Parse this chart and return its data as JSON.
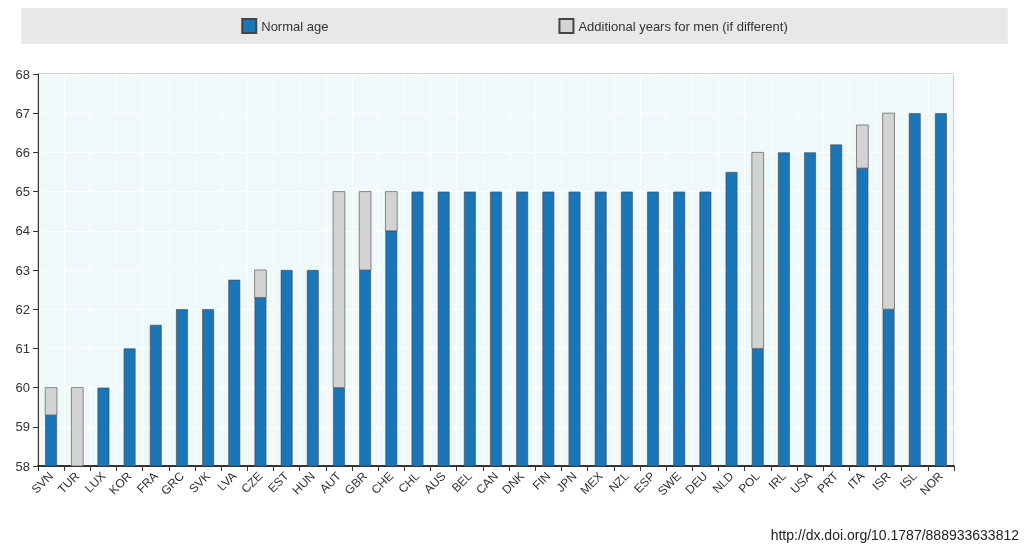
{
  "chart_data": {
    "type": "bar",
    "categories": [
      "SVN",
      "TUR",
      "LUX",
      "KOR",
      "FRA",
      "GRC",
      "SVK",
      "LVA",
      "CZE",
      "EST",
      "HUN",
      "AUT",
      "GBR",
      "CHE",
      "CHL",
      "AUS",
      "BEL",
      "CAN",
      "DNK",
      "FIN",
      "JPN",
      "MEX",
      "NZL",
      "ESP",
      "SWE",
      "DEU",
      "NLD",
      "POL",
      "IRL",
      "USA",
      "PRT",
      "ITA",
      "ISR",
      "ISL",
      "NOR"
    ],
    "series": [
      {
        "name": "Normal age",
        "color": "#1a76b8",
        "values": [
          59.3,
          58,
          60,
          61,
          61.6,
          62,
          62,
          62.75,
          62.3,
          63,
          63,
          60,
          63,
          64,
          65,
          65,
          65,
          65,
          65,
          65,
          65,
          65,
          65,
          65,
          65,
          65,
          65.5,
          61,
          66,
          66,
          66.2,
          65.6,
          62,
          67,
          67
        ]
      },
      {
        "name": "Additional years for men (if different)",
        "color": "#d3d3d3",
        "base": [
          59.3,
          58,
          null,
          null,
          null,
          null,
          null,
          null,
          62.3,
          null,
          null,
          60,
          63,
          64,
          null,
          null,
          null,
          null,
          null,
          null,
          null,
          null,
          null,
          null,
          null,
          null,
          null,
          61,
          null,
          null,
          null,
          65.6,
          62,
          null,
          null
        ],
        "values": [
          0.7,
          2,
          null,
          null,
          null,
          null,
          null,
          null,
          0.7,
          null,
          null,
          5,
          2,
          1,
          null,
          null,
          null,
          null,
          null,
          null,
          null,
          null,
          null,
          null,
          null,
          null,
          null,
          5,
          null,
          null,
          null,
          1.1,
          5,
          null,
          null
        ]
      }
    ],
    "ylim": [
      58,
      68
    ],
    "yticks": [
      58,
      59,
      60,
      61,
      62,
      63,
      64,
      65,
      66,
      67,
      68
    ],
    "grid": true,
    "legend": "top",
    "annotations": [
      "http://dx.doi.org/10.1787/888933633812"
    ]
  }
}
